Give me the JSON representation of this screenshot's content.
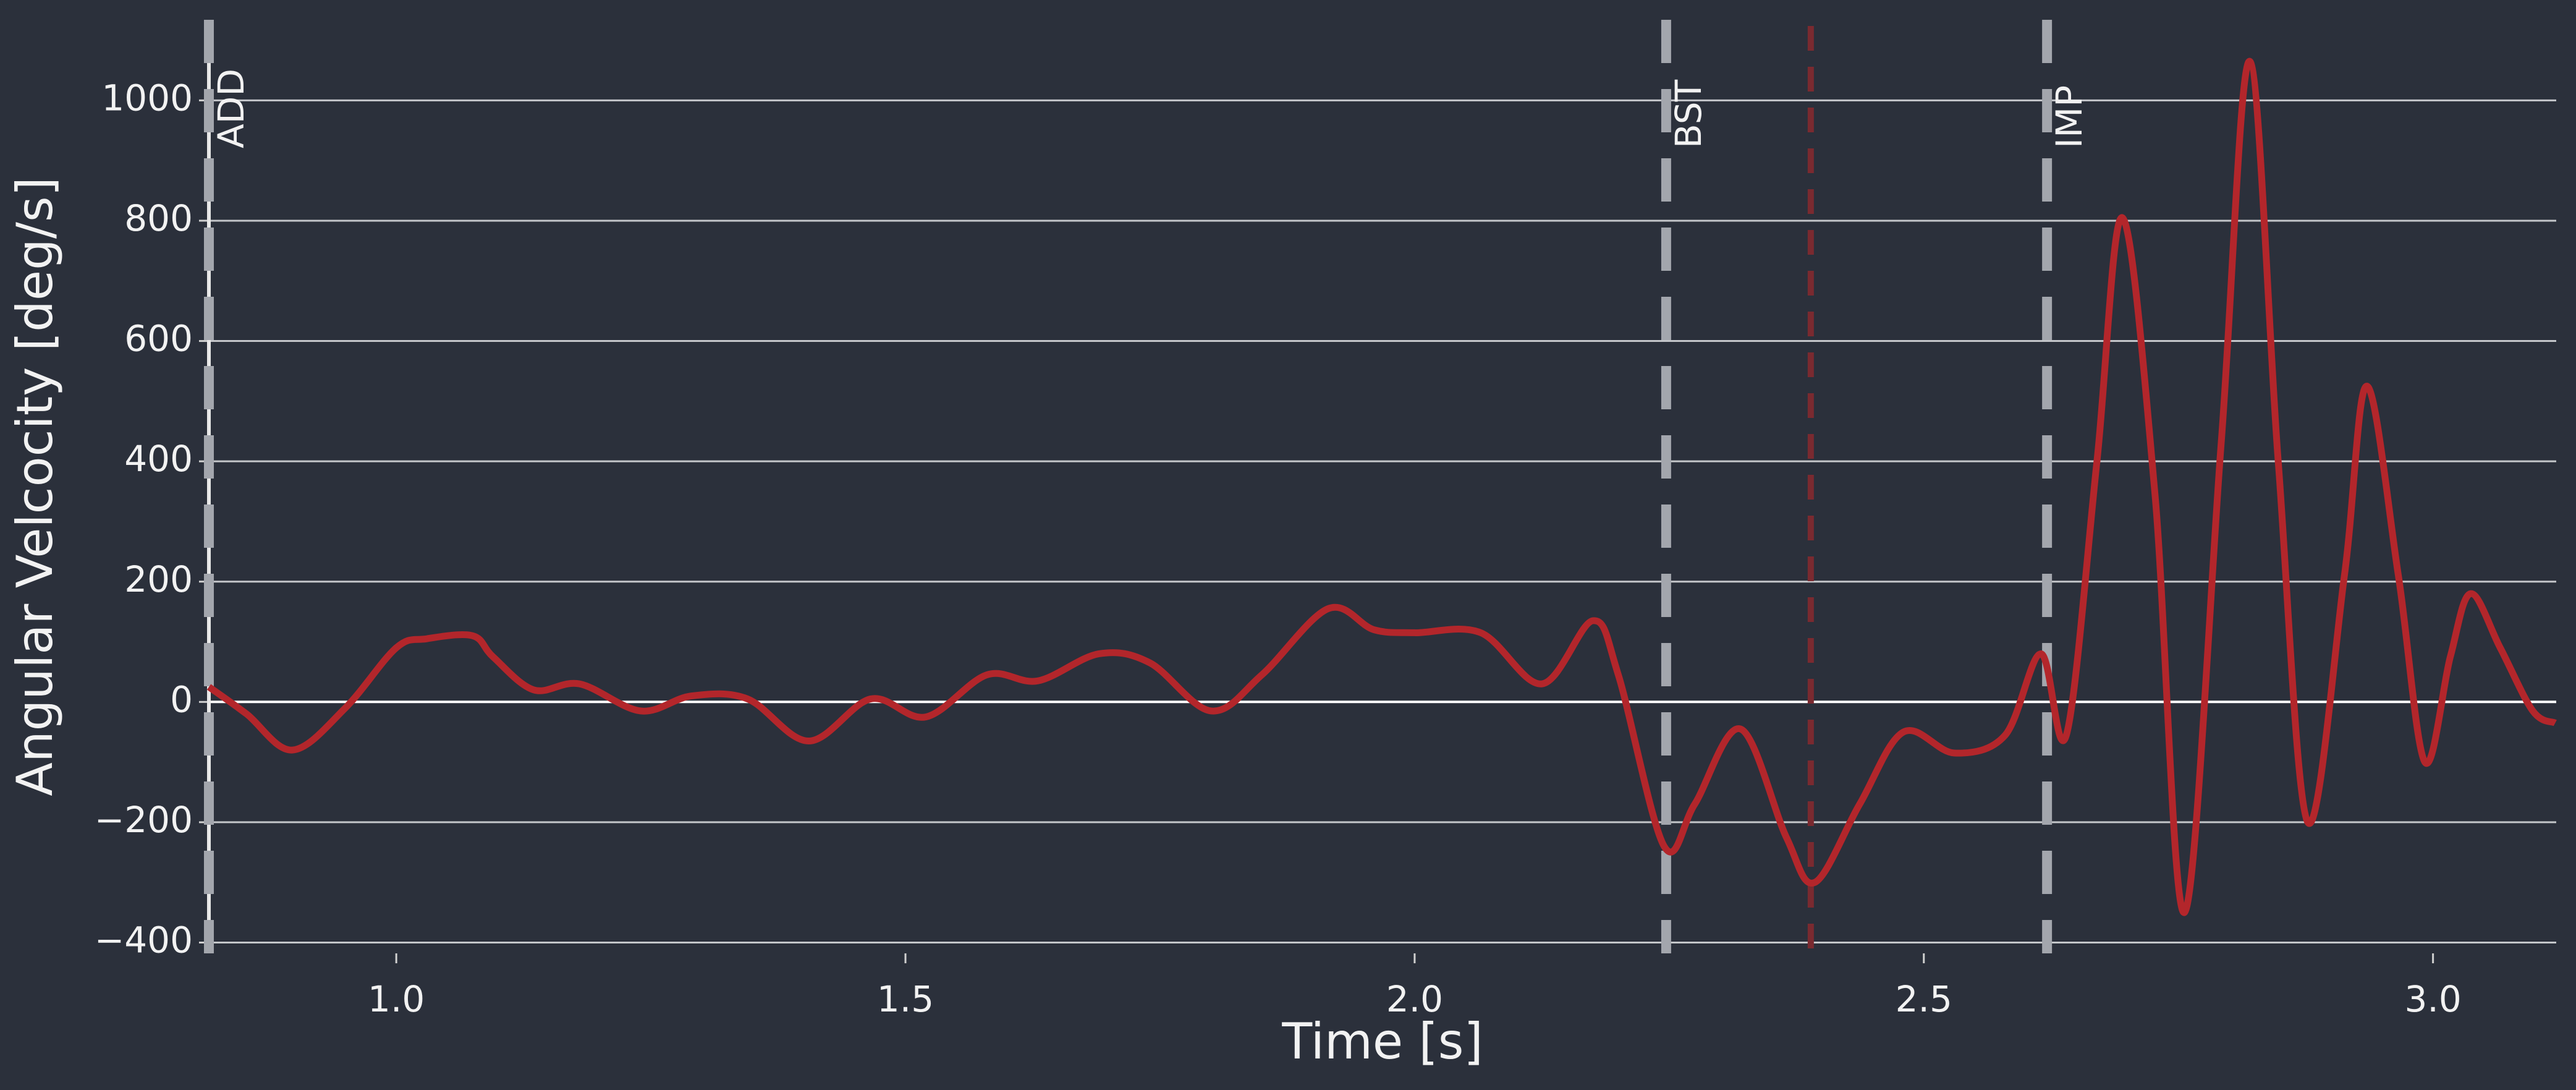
{
  "chart_data": {
    "type": "line",
    "xlabel": "Time [s]",
    "ylabel": "Angular Velcocity [deg/s]",
    "x": [
      0.816,
      0.853,
      0.898,
      0.95,
      1.0,
      1.03,
      1.075,
      1.095,
      1.135,
      1.18,
      1.24,
      1.29,
      1.345,
      1.405,
      1.466,
      1.52,
      1.58,
      1.63,
      1.69,
      1.74,
      1.8,
      1.85,
      1.915,
      1.96,
      2.0,
      2.065,
      2.125,
      2.175,
      2.2,
      2.245,
      2.275,
      2.32,
      2.365,
      2.393,
      2.437,
      2.48,
      2.53,
      2.58,
      2.615,
      2.64,
      2.67,
      2.695,
      2.727,
      2.756,
      2.792,
      2.82,
      2.848,
      2.877,
      2.913,
      2.935,
      2.966,
      2.992,
      3.017,
      3.037,
      3.066,
      3.098,
      3.12
    ],
    "series": [
      {
        "color": "#b3262b",
        "values": [
          25,
          -20,
          -80,
          -10,
          90,
          105,
          110,
          75,
          20,
          30,
          -15,
          10,
          5,
          -65,
          5,
          -25,
          45,
          35,
          80,
          65,
          -15,
          45,
          155,
          120,
          115,
          115,
          30,
          135,
          45,
          -240,
          -170,
          -45,
          -225,
          -300,
          -170,
          -50,
          -85,
          -55,
          80,
          -55,
          400,
          805,
          345,
          -350,
          430,
          1065,
          400,
          -200,
          210,
          525,
          210,
          -100,
          75,
          180,
          90,
          -15,
          -35
        ]
      }
    ],
    "events": [
      {
        "label": "ADD",
        "x": 0.816,
        "color": "#a3a6ad"
      },
      {
        "label": "BST",
        "x": 2.247,
        "color": "#a3a6ad"
      },
      {
        "label": "IMP",
        "x": 2.621,
        "color": "#a3a6ad"
      }
    ],
    "peak_marker": {
      "x": 2.389,
      "color": "#7a2a30"
    },
    "xlim": [
      0.816,
      3.121
    ],
    "ylim": [
      -418,
      1134
    ],
    "xticks": [
      {
        "value": 1,
        "label": "1.0"
      },
      1.5,
      {
        "value": 2,
        "label": "2.0"
      },
      2.5,
      {
        "value": 3,
        "label": "3.0"
      }
    ],
    "yticks": [
      {
        "value": -400,
        "label": "−400"
      },
      {
        "value": -200,
        "label": "−200"
      },
      0,
      200,
      400,
      600,
      800,
      1000
    ],
    "grid": true
  }
}
